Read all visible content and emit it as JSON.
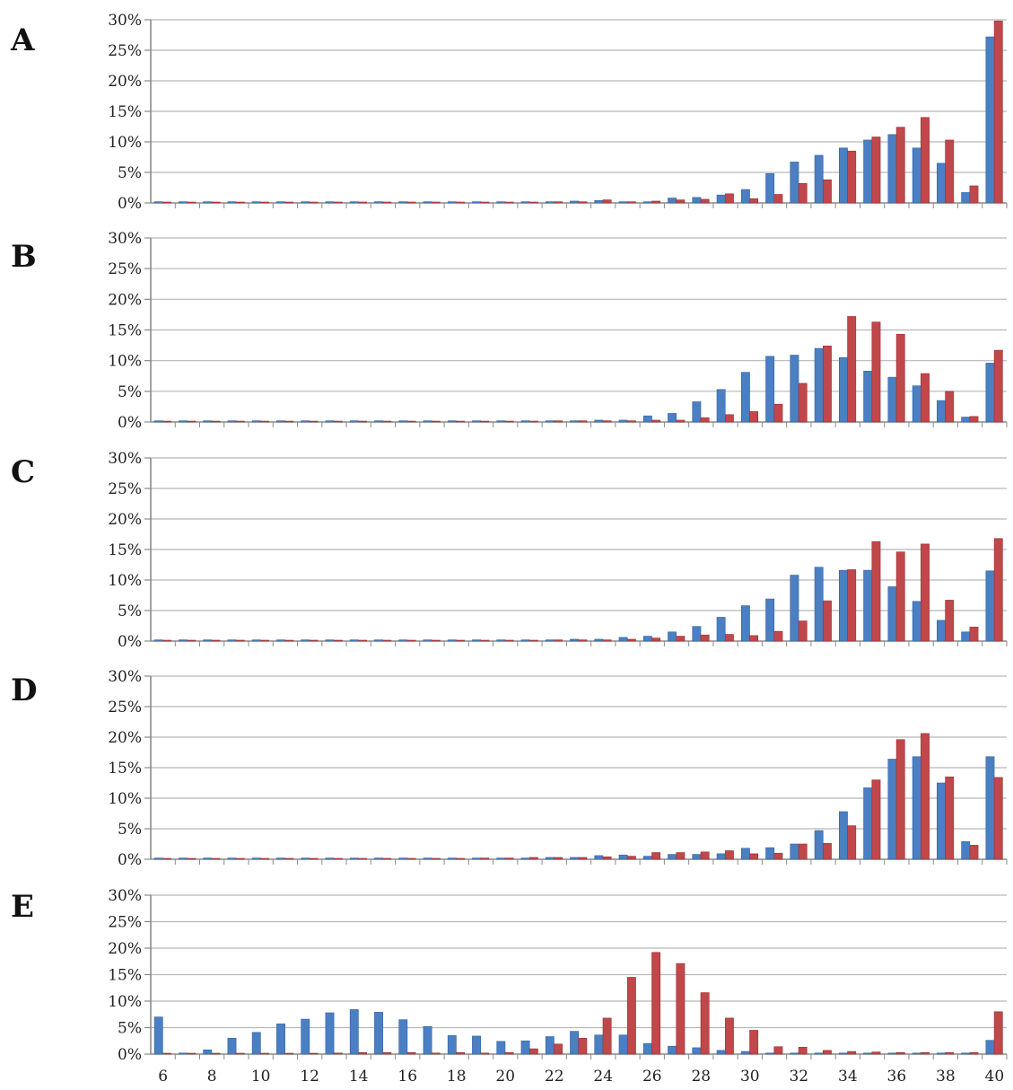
{
  "colors": {
    "series_a": "#4a7fc4",
    "series_b": "#c0474a",
    "grid": "#b8b8b8",
    "axis": "#8a8a8a"
  },
  "chart_data": [
    {
      "type": "bar",
      "panel": "A",
      "categories": [
        6,
        7,
        8,
        9,
        10,
        11,
        12,
        13,
        14,
        15,
        16,
        17,
        18,
        19,
        20,
        21,
        22,
        23,
        24,
        25,
        26,
        27,
        28,
        29,
        30,
        31,
        32,
        33,
        34,
        35,
        36,
        37,
        38,
        39,
        40
      ],
      "series": [
        {
          "values": [
            0.2,
            0.2,
            0.2,
            0.2,
            0.2,
            0.2,
            0.2,
            0.2,
            0.2,
            0.2,
            0.2,
            0.2,
            0.2,
            0.2,
            0.2,
            0.2,
            0.2,
            0.3,
            0.4,
            0.2,
            0.2,
            0.8,
            0.9,
            1.3,
            2.2,
            4.8,
            6.7,
            7.8,
            9.0,
            10.3,
            11.2,
            9.0,
            6.5,
            1.7,
            27.2
          ]
        },
        {
          "values": [
            0.1,
            0.1,
            0.1,
            0.1,
            0.1,
            0.1,
            0.1,
            0.1,
            0.1,
            0.1,
            0.1,
            0.1,
            0.1,
            0.1,
            0.1,
            0.1,
            0.2,
            0.2,
            0.5,
            0.2,
            0.3,
            0.5,
            0.6,
            1.5,
            0.7,
            1.4,
            3.2,
            3.8,
            8.5,
            10.8,
            12.4,
            14.0,
            10.3,
            2.8,
            29.8
          ]
        }
      ],
      "ylim": [
        0,
        30
      ],
      "yticks": [
        "0%",
        "5%",
        "10%",
        "15%",
        "20%",
        "25%",
        "30%"
      ],
      "grid": true
    },
    {
      "type": "bar",
      "panel": "B",
      "categories": [
        6,
        7,
        8,
        9,
        10,
        11,
        12,
        13,
        14,
        15,
        16,
        17,
        18,
        19,
        20,
        21,
        22,
        23,
        24,
        25,
        26,
        27,
        28,
        29,
        30,
        31,
        32,
        33,
        34,
        35,
        36,
        37,
        38,
        39,
        40
      ],
      "series": [
        {
          "values": [
            0.2,
            0.2,
            0.2,
            0.2,
            0.2,
            0.2,
            0.2,
            0.2,
            0.2,
            0.2,
            0.2,
            0.2,
            0.2,
            0.2,
            0.2,
            0.2,
            0.2,
            0.2,
            0.3,
            0.3,
            1.0,
            1.4,
            3.3,
            5.3,
            8.1,
            10.7,
            10.9,
            12.0,
            10.5,
            8.3,
            7.3,
            5.9,
            3.5,
            0.8,
            9.6
          ]
        },
        {
          "values": [
            0.1,
            0.1,
            0.1,
            0.1,
            0.1,
            0.1,
            0.1,
            0.1,
            0.1,
            0.1,
            0.1,
            0.1,
            0.1,
            0.1,
            0.1,
            0.1,
            0.2,
            0.2,
            0.2,
            0.2,
            0.3,
            0.3,
            0.7,
            1.2,
            1.7,
            2.9,
            6.3,
            12.4,
            17.2,
            16.3,
            14.3,
            7.9,
            5.0,
            0.9,
            11.7
          ]
        }
      ],
      "ylim": [
        0,
        30
      ],
      "yticks": [
        "0%",
        "5%",
        "10%",
        "15%",
        "20%",
        "25%",
        "30%"
      ],
      "grid": true
    },
    {
      "type": "bar",
      "panel": "C",
      "categories": [
        6,
        7,
        8,
        9,
        10,
        11,
        12,
        13,
        14,
        15,
        16,
        17,
        18,
        19,
        20,
        21,
        22,
        23,
        24,
        25,
        26,
        27,
        28,
        29,
        30,
        31,
        32,
        33,
        34,
        35,
        36,
        37,
        38,
        39,
        40
      ],
      "series": [
        {
          "values": [
            0.2,
            0.2,
            0.2,
            0.2,
            0.2,
            0.2,
            0.2,
            0.2,
            0.2,
            0.2,
            0.2,
            0.2,
            0.2,
            0.2,
            0.2,
            0.2,
            0.2,
            0.3,
            0.3,
            0.6,
            0.8,
            1.5,
            2.4,
            3.9,
            5.8,
            6.9,
            10.8,
            12.1,
            11.6,
            11.6,
            8.9,
            6.5,
            3.4,
            1.5,
            11.5
          ]
        },
        {
          "values": [
            0.1,
            0.1,
            0.1,
            0.1,
            0.1,
            0.1,
            0.1,
            0.1,
            0.1,
            0.1,
            0.1,
            0.1,
            0.1,
            0.1,
            0.1,
            0.1,
            0.2,
            0.2,
            0.2,
            0.3,
            0.5,
            0.8,
            1.0,
            1.1,
            0.9,
            1.6,
            3.3,
            6.6,
            11.7,
            16.3,
            14.6,
            15.9,
            6.7,
            2.3,
            16.8
          ]
        }
      ],
      "ylim": [
        0,
        30
      ],
      "yticks": [
        "0%",
        "5%",
        "10%",
        "15%",
        "20%",
        "25%",
        "30%"
      ],
      "grid": true
    },
    {
      "type": "bar",
      "panel": "D",
      "categories": [
        6,
        7,
        8,
        9,
        10,
        11,
        12,
        13,
        14,
        15,
        16,
        17,
        18,
        19,
        20,
        21,
        22,
        23,
        24,
        25,
        26,
        27,
        28,
        29,
        30,
        31,
        32,
        33,
        34,
        35,
        36,
        37,
        38,
        39,
        40
      ],
      "series": [
        {
          "values": [
            0.2,
            0.2,
            0.2,
            0.2,
            0.2,
            0.2,
            0.2,
            0.2,
            0.2,
            0.2,
            0.2,
            0.2,
            0.2,
            0.2,
            0.2,
            0.2,
            0.3,
            0.3,
            0.6,
            0.7,
            0.5,
            0.8,
            0.8,
            0.9,
            1.8,
            1.9,
            2.5,
            4.7,
            7.8,
            11.7,
            16.4,
            16.8,
            12.5,
            2.9,
            16.8
          ]
        },
        {
          "values": [
            0.1,
            0.1,
            0.1,
            0.1,
            0.1,
            0.1,
            0.1,
            0.1,
            0.1,
            0.1,
            0.1,
            0.1,
            0.1,
            0.2,
            0.2,
            0.3,
            0.3,
            0.3,
            0.4,
            0.5,
            1.1,
            1.1,
            1.2,
            1.4,
            0.9,
            1.0,
            2.5,
            2.6,
            5.5,
            13.0,
            19.6,
            20.6,
            13.5,
            2.3,
            13.4
          ]
        }
      ],
      "ylim": [
        0,
        30
      ],
      "yticks": [
        "0%",
        "5%",
        "10%",
        "15%",
        "20%",
        "25%",
        "30%"
      ],
      "grid": true
    },
    {
      "type": "bar",
      "panel": "E",
      "categories": [
        6,
        7,
        8,
        9,
        10,
        11,
        12,
        13,
        14,
        15,
        16,
        17,
        18,
        19,
        20,
        21,
        22,
        23,
        24,
        25,
        26,
        27,
        28,
        29,
        30,
        31,
        32,
        33,
        34,
        35,
        36,
        37,
        38,
        39,
        40
      ],
      "series": [
        {
          "values": [
            7.0,
            0.2,
            0.8,
            3.0,
            4.1,
            5.7,
            6.6,
            7.8,
            8.4,
            7.9,
            6.5,
            5.2,
            3.5,
            3.4,
            2.4,
            2.5,
            3.3,
            4.3,
            3.6,
            3.6,
            2.0,
            1.5,
            1.2,
            0.7,
            0.5,
            0.2,
            0.2,
            0.2,
            0.2,
            0.2,
            0.2,
            0.2,
            0.2,
            0.2,
            2.6
          ]
        },
        {
          "values": [
            0.1,
            0.1,
            0.1,
            0.1,
            0.1,
            0.1,
            0.1,
            0.2,
            0.3,
            0.3,
            0.3,
            0.2,
            0.3,
            0.2,
            0.3,
            1.0,
            1.9,
            3.0,
            6.8,
            14.5,
            19.2,
            17.1,
            11.6,
            6.8,
            4.5,
            1.4,
            1.3,
            0.7,
            0.5,
            0.4,
            0.3,
            0.3,
            0.3,
            0.3,
            8.0
          ]
        }
      ],
      "ylim": [
        0,
        30
      ],
      "yticks": [
        "0%",
        "5%",
        "10%",
        "15%",
        "20%",
        "25%",
        "30%"
      ],
      "xticks": [
        "6",
        "8",
        "10",
        "12",
        "14",
        "16",
        "18",
        "20",
        "22",
        "24",
        "26",
        "28",
        "30",
        "32",
        "34",
        "36",
        "38",
        "40"
      ],
      "grid": true
    }
  ]
}
